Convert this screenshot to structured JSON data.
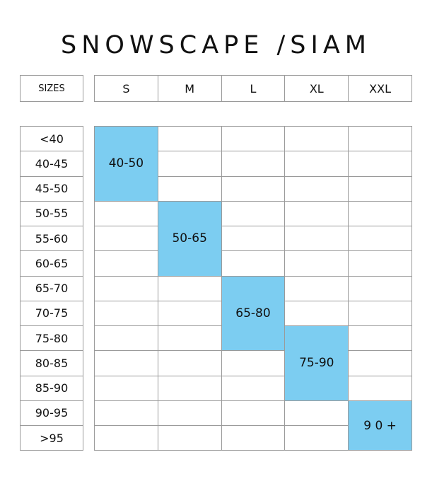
{
  "title": "SNOWSCAPE /SIAM",
  "table": {
    "header_label": "SIZES",
    "columns": [
      "S",
      "M",
      "L",
      "XL",
      "XXL"
    ],
    "rows": [
      "<40",
      "40-45",
      "45-50",
      "50-55",
      "55-60",
      "60-65",
      "65-70",
      "70-75",
      "75-80",
      "80-85",
      "85-90",
      "90-95",
      ">95"
    ],
    "ranges": [
      {
        "column": "S",
        "label": "40-50",
        "rows_covered": [
          "<40",
          "40-45",
          "45-50"
        ]
      },
      {
        "column": "M",
        "label": "50-65",
        "rows_covered": [
          "50-55",
          "55-60",
          "60-65"
        ]
      },
      {
        "column": "L",
        "label": "65-80",
        "rows_covered": [
          "65-70",
          "70-75",
          "75-80"
        ]
      },
      {
        "column": "XL",
        "label": "75-90",
        "rows_covered": [
          "75-80",
          "80-85",
          "85-90"
        ]
      },
      {
        "column": "XXL",
        "label": "9 0 +",
        "rows_covered": [
          "90-95",
          ">95"
        ]
      }
    ],
    "highlight_color": "#7ccdf1",
    "border_color": "#9a9a9a"
  }
}
